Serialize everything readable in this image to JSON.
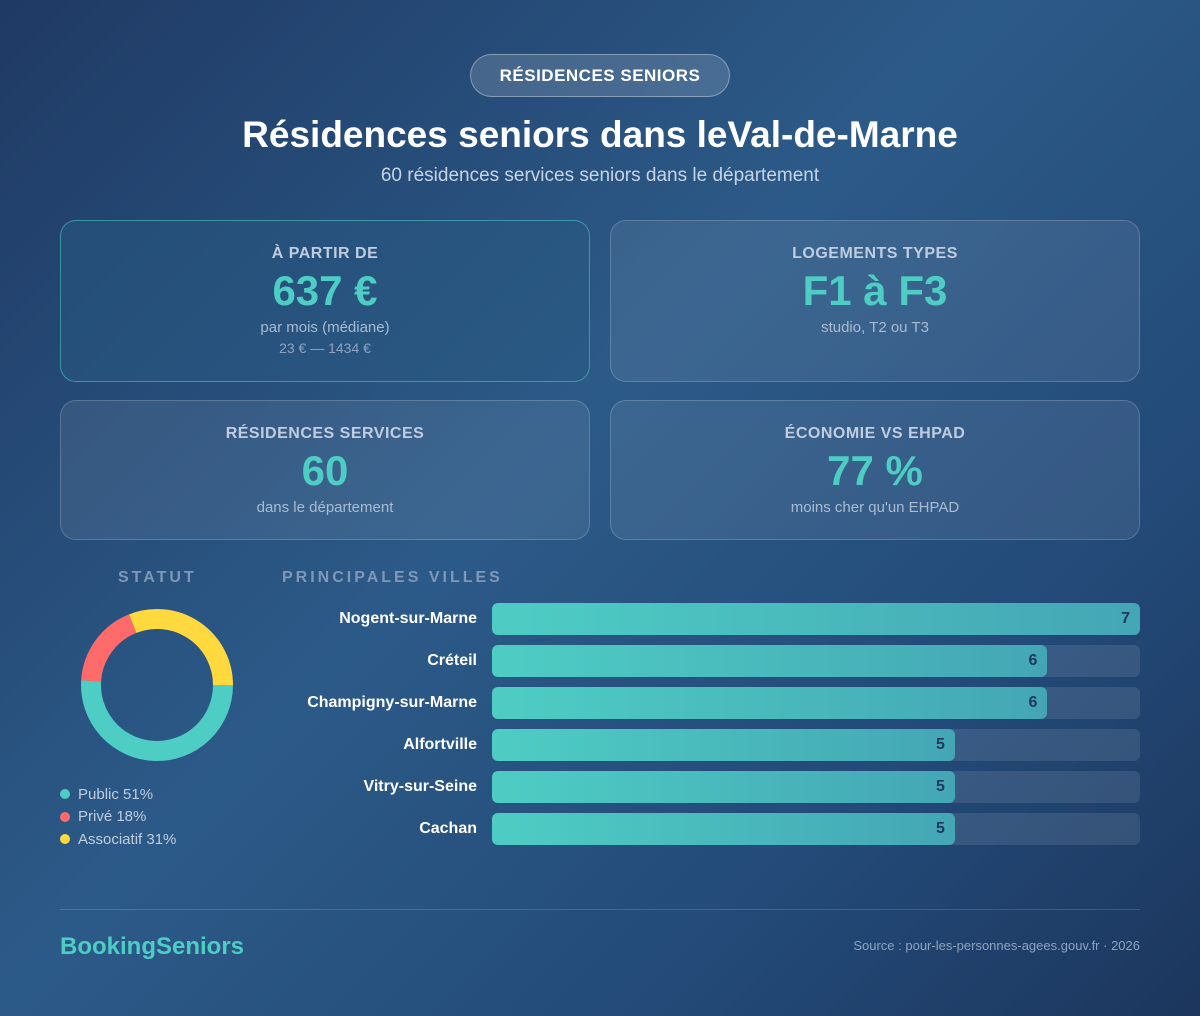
{
  "badge": "RÉSIDENCES SENIORS",
  "title": "Résidences seniors dans leVal-de-Marne",
  "subtitle": "60 résidences services seniors dans le département",
  "cards": [
    {
      "label": "À PARTIR DE",
      "value": "637 €",
      "desc": "par mois (médiane)",
      "range": "23 € — 1434 €"
    },
    {
      "label": "LOGEMENTS TYPES",
      "value": "F1 à F3",
      "desc": "studio, T2 ou T3"
    },
    {
      "label": "RÉSIDENCES SERVICES",
      "value": "60",
      "desc": "dans le département"
    },
    {
      "label": "ÉCONOMIE VS EHPAD",
      "value": "77 %",
      "desc": "moins cher qu'un EHPAD"
    }
  ],
  "chart_data": [
    {
      "type": "pie",
      "donut": true,
      "title": "STATUT",
      "categories": [
        "Public",
        "Privé",
        "Associatif"
      ],
      "values": [
        51,
        18,
        31
      ],
      "legend": [
        "Public 51%",
        "Privé 18%",
        "Associatif 31%"
      ],
      "colors": [
        "#4ecdc4",
        "#ff6b6b",
        "#ffd93d"
      ],
      "legend_placement": "bottom"
    },
    {
      "type": "bar",
      "orientation": "horizontal",
      "title": "PRINCIPALES VILLES",
      "categories": [
        "Nogent-sur-Marne",
        "Créteil",
        "Champigny-sur-Marne",
        "Alfortville",
        "Vitry-sur-Seine",
        "Cachan"
      ],
      "values": [
        7,
        6,
        6,
        5,
        5,
        5
      ],
      "xlim": [
        0,
        7
      ],
      "color": "#4ecdc4"
    }
  ],
  "footer": {
    "brand": "BookingSeniors",
    "source": "Source : pour-les-personnes-agees.gouv.fr · 2026"
  }
}
